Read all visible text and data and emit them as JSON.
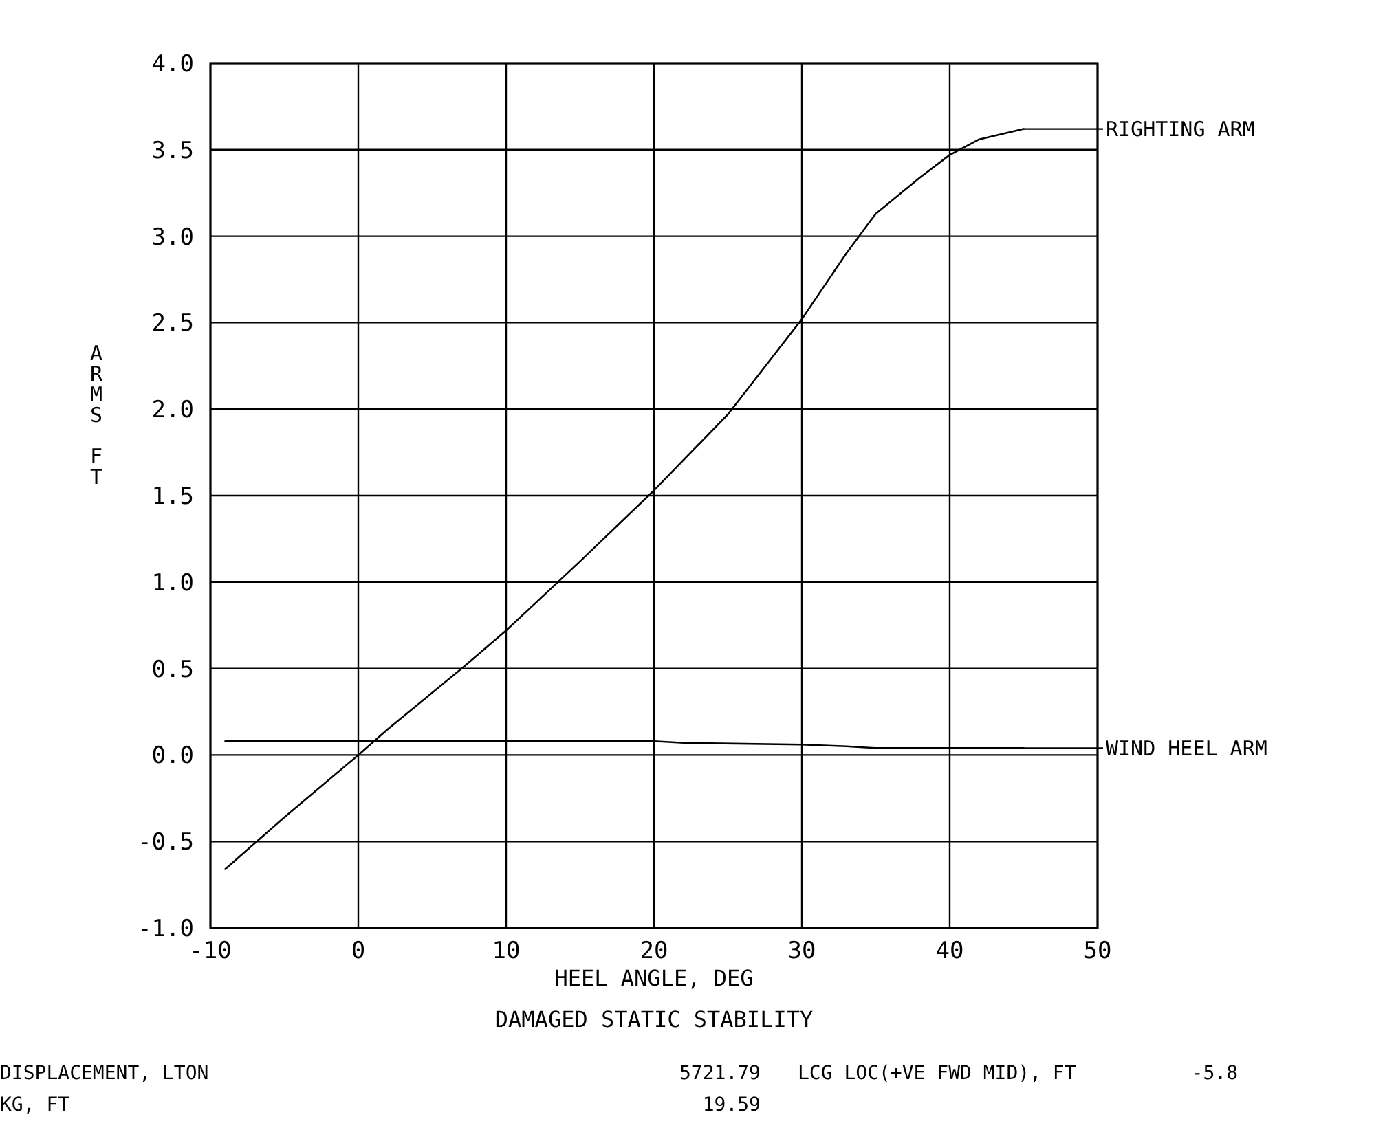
{
  "chart_data": {
    "type": "line",
    "title": "DAMAGED STATIC STABILITY",
    "xlabel": "HEEL ANGLE, DEG",
    "ylabel": "ARMS FT",
    "xlim": [
      -10,
      50
    ],
    "xticks": [
      -10,
      0,
      10,
      20,
      30,
      40,
      50
    ],
    "ylim": [
      -1,
      4
    ],
    "yticks": [
      {
        "value": -1,
        "label": "-1.0"
      },
      {
        "value": -0.5,
        "label": "-0.5"
      },
      {
        "value": 0,
        "label": "0.0"
      },
      {
        "value": 0.5,
        "label": "0.5"
      },
      {
        "value": 1,
        "label": "1.0"
      },
      {
        "value": 1.5,
        "label": "1.5"
      },
      {
        "value": 2,
        "label": "2.0"
      },
      {
        "value": 2.5,
        "label": "2.5"
      },
      {
        "value": 3,
        "label": "3.0"
      },
      {
        "value": 3.5,
        "label": "3.5"
      },
      {
        "value": 4,
        "label": "4.0"
      }
    ],
    "grid": true,
    "legend": "right",
    "marker": "none",
    "line_style": "solid",
    "series": [
      {
        "name": "RIGHTING ARM",
        "color": "#000000",
        "x": [
          -9,
          -5,
          0,
          2,
          5,
          7,
          10,
          15,
          20,
          25,
          30,
          33,
          35,
          38,
          40,
          42,
          45
        ],
        "values": [
          -0.66,
          -0.36,
          0,
          0.15,
          0.36,
          0.5,
          0.72,
          1.12,
          1.53,
          1.97,
          2.52,
          2.9,
          3.13,
          3.34,
          3.47,
          3.56,
          3.62
        ]
      },
      {
        "name": "WIND HEEL ARM",
        "color": "#000000",
        "x": [
          -9,
          0,
          10,
          20,
          22,
          30,
          33,
          35,
          40,
          45
        ],
        "values": [
          0.08,
          0.08,
          0.08,
          0.08,
          0.07,
          0.06,
          0.05,
          0.04,
          0.04,
          0.04
        ]
      }
    ],
    "annotations": [
      "DISPLACEMENT, LTON",
      "5721.79",
      "LCG LOC(+VE FWD MID), FT",
      "-5.8",
      "KG, FT",
      "19.59"
    ]
  }
}
